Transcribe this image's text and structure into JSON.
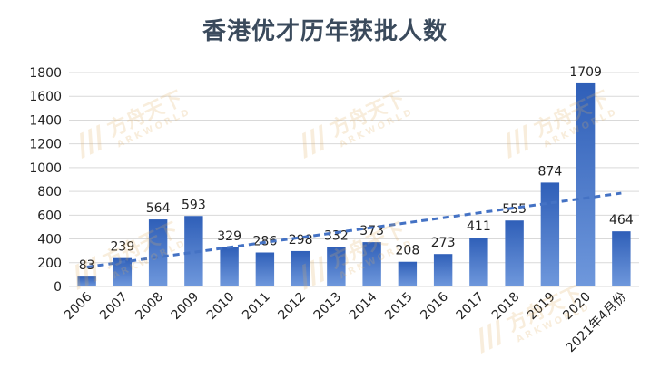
{
  "chart_data": {
    "type": "bar",
    "title": "香港优才历年获批人数",
    "categories": [
      "2006",
      "2007",
      "2008",
      "2009",
      "2010",
      "2011",
      "2012",
      "2013",
      "2014",
      "2015",
      "2016",
      "2017",
      "2018",
      "2019",
      "2020",
      "2021年4月份"
    ],
    "values": [
      83,
      239,
      564,
      593,
      329,
      286,
      298,
      332,
      373,
      208,
      273,
      411,
      555,
      874,
      1709,
      464
    ],
    "y_ticks": [
      0,
      200,
      400,
      600,
      800,
      1000,
      1200,
      1400,
      1600,
      1800
    ],
    "ylim": [
      0,
      1800
    ],
    "grid": true,
    "trendline": {
      "style": "dashed",
      "type": "linear"
    },
    "colors": {
      "bar": "#4472c4",
      "trend": "#4472c4",
      "grid": "#d9d9d9",
      "title": "#3a4a5c"
    }
  },
  "watermark": {
    "name": "方舟天下",
    "sub": "ARKWORLD"
  }
}
